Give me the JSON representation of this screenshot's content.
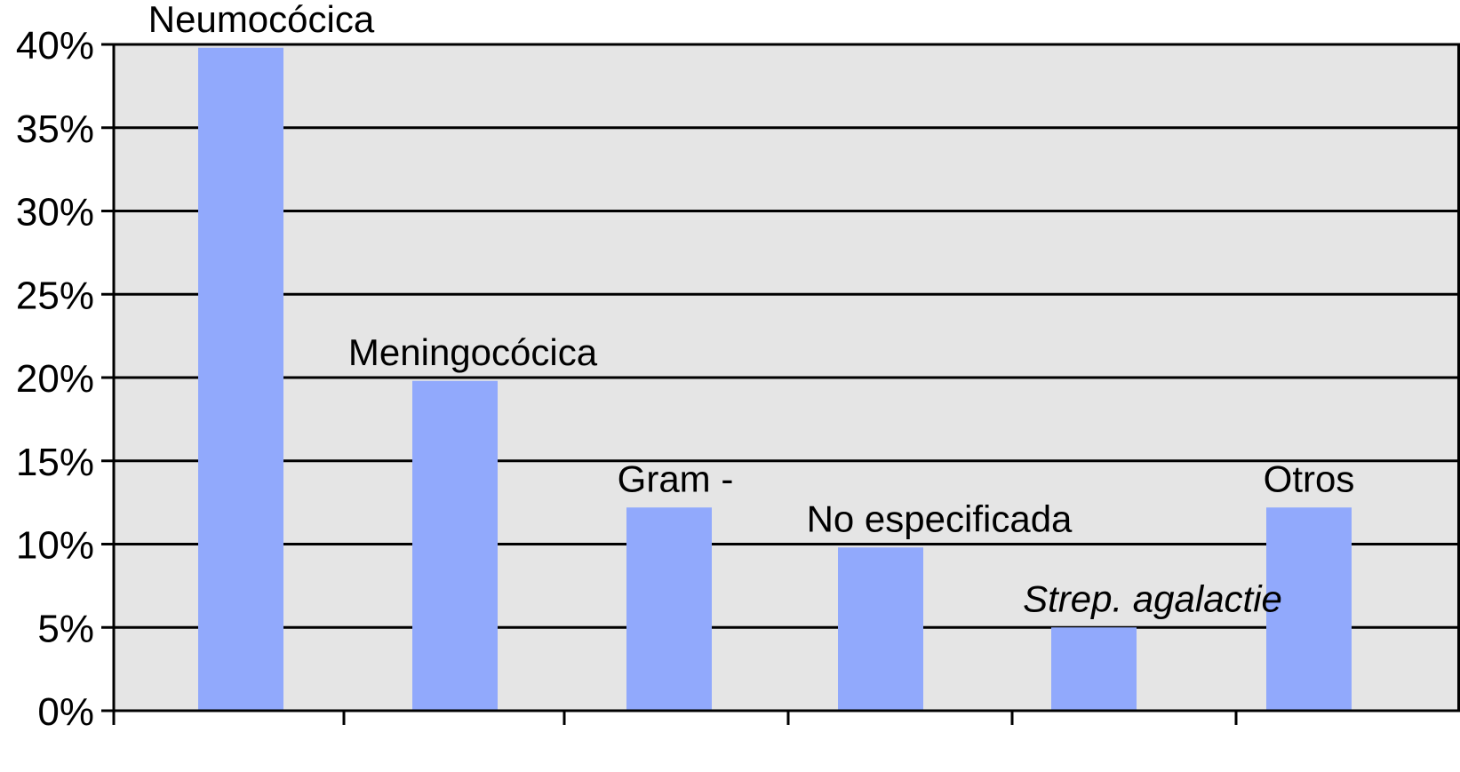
{
  "chart_data": {
    "type": "bar",
    "categories": [
      "Neumocócica",
      "Meningocócica",
      "Gram -",
      "No especificada",
      "Strep. agalactie",
      "Otros"
    ],
    "series": [
      {
        "values": [
          39.8,
          19.8,
          12.2,
          9.8,
          5.0,
          12.2
        ]
      }
    ],
    "italic_categories": [
      "Strep. agalactie"
    ],
    "ylim": [
      0,
      40
    ],
    "y_ticks": [
      0,
      5,
      10,
      15,
      20,
      25,
      30,
      35,
      40
    ],
    "y_tick_labels": [
      "0%",
      "5%",
      "10%",
      "15%",
      "20%",
      "25%",
      "30%",
      "35%",
      "40%"
    ],
    "title": "",
    "xlabel": "",
    "ylabel": "",
    "grid": true,
    "legend": "none",
    "colors": {
      "bar": "#91a9fc",
      "plot_background": "#e5e5e5",
      "gridline": "#000000",
      "axis": "#000000"
    }
  }
}
